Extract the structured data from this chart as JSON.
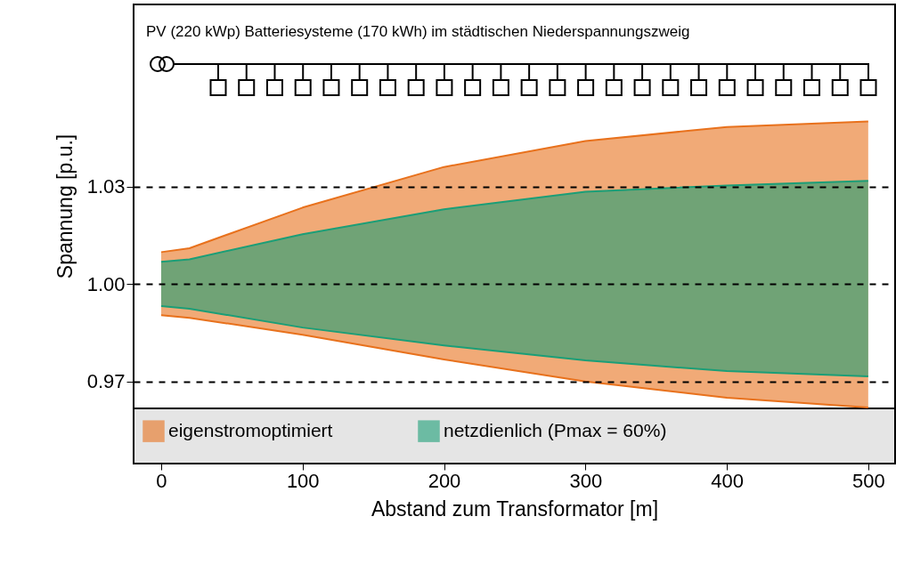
{
  "chart_data": {
    "type": "area",
    "title": "PV (220 kWp) Batteriesysteme (170 kWh) im städtischen Niederspannungszweig",
    "xlabel": "Abstand zum Transformator [m]",
    "ylabel": "Spannung [p.u.]",
    "x": [
      0,
      20,
      100,
      200,
      300,
      400,
      500
    ],
    "series": [
      {
        "name": "eigenstromoptimiert",
        "color": "#e8711c",
        "values": [
          1.0098,
          1.011,
          1.0235,
          1.036,
          1.044,
          1.0483,
          1.05
        ]
      },
      {
        "type": "line",
        "color": "#e8711c",
        "values": [
          0.9904,
          0.9896,
          0.9844,
          0.9768,
          0.97,
          0.965,
          0.962
        ]
      },
      {
        "name": "netzdienlich (Pmax = 60%)",
        "color": "#1b9e77",
        "values": [
          1.0068,
          1.0076,
          1.0153,
          1.023,
          1.0284,
          1.0303,
          1.0317
        ]
      },
      {
        "type": "line",
        "color": "#1b9e77",
        "values": [
          0.9932,
          0.9924,
          0.9866,
          0.9811,
          0.9765,
          0.9732,
          0.9716
        ]
      }
    ],
    "xlim": [
      -19.5,
      519
    ],
    "ylim": [
      0.962,
      1.086
    ],
    "xticks": [
      0,
      100,
      200,
      300,
      400,
      500
    ],
    "yticks": [
      {
        "value": 0.97,
        "label": "0.97"
      },
      {
        "value": 1.0,
        "label": "1.00"
      },
      {
        "value": 1.03,
        "label": "1.03"
      }
    ],
    "grid": "y",
    "legend": "bottom"
  }
}
